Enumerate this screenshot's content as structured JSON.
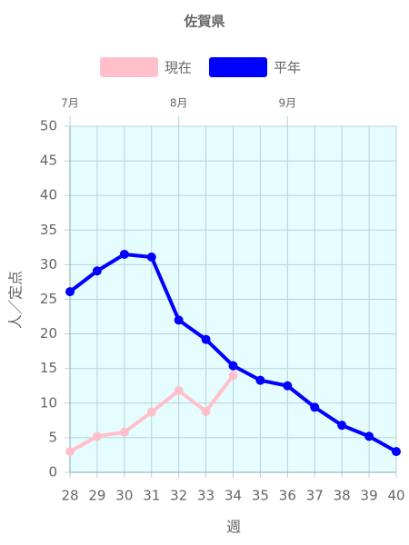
{
  "chart_data": {
    "type": "line",
    "title": "佐賀県",
    "x": [
      28,
      29,
      30,
      31,
      32,
      33,
      34,
      35,
      36,
      37,
      38,
      39,
      40
    ],
    "xlim": [
      28,
      40
    ],
    "top_axis_ticks": [
      {
        "value": 28,
        "label": "7月"
      },
      {
        "value": 32,
        "label": "8月"
      },
      {
        "value": 36,
        "label": "9月"
      }
    ],
    "series": [
      {
        "name": "現在",
        "color": "#ffc0cb",
        "values": [
          3.0,
          5.2,
          5.8,
          8.7,
          11.8,
          8.8,
          14.0,
          null,
          null,
          null,
          null,
          null,
          null
        ]
      },
      {
        "name": "平年",
        "color": "#0000ff",
        "values": [
          26.1,
          29.1,
          31.5,
          31.1,
          22.0,
          19.2,
          15.4,
          13.3,
          12.5,
          9.4,
          6.8,
          5.2,
          3.0
        ]
      }
    ],
    "ylim": [
      0,
      50
    ],
    "yticks": [
      0,
      5,
      10,
      15,
      20,
      25,
      30,
      35,
      40,
      45,
      50
    ],
    "xlabel": "週",
    "ylabel": "人／定点",
    "grid": true,
    "plot_background": "#e6fdff",
    "legend": "top"
  }
}
